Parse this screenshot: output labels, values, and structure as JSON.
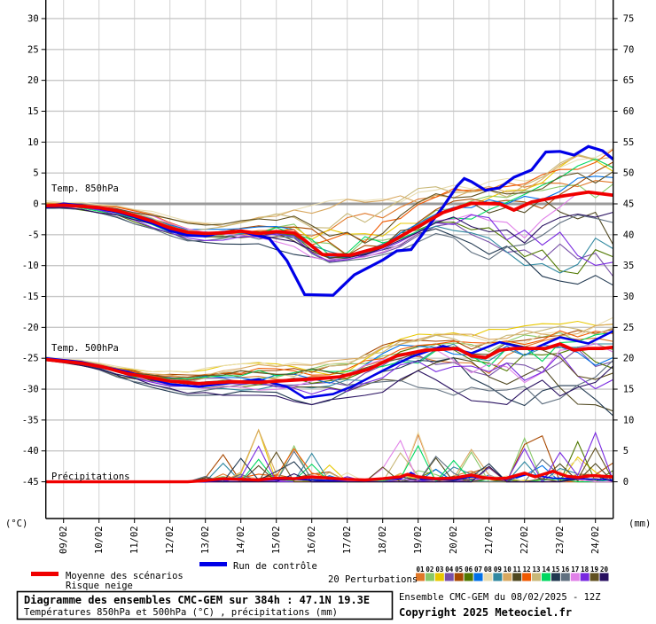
{
  "axes": {
    "left_unit": "(°C)",
    "right_unit": "(mm)",
    "left_ticks": [
      30,
      25,
      20,
      15,
      10,
      5,
      0,
      -5,
      -10,
      -15,
      -20,
      -25,
      -30,
      -35,
      -40,
      -45
    ],
    "right_ticks": [
      75,
      70,
      65,
      60,
      55,
      50,
      45,
      40,
      35,
      30,
      25,
      20,
      15,
      10,
      5,
      0
    ],
    "dates": [
      "09/02",
      "10/02",
      "11/02",
      "12/02",
      "13/02",
      "14/02",
      "15/02",
      "16/02",
      "17/02",
      "18/02",
      "19/02",
      "20/02",
      "21/02",
      "22/02",
      "23/02",
      "24/02"
    ]
  },
  "band_labels": {
    "t850": "Temp. 850hPa",
    "t500": "Temp. 500hPa",
    "precip": "Précipitations"
  },
  "legend": {
    "mean_label": "Moyenne des scénarios",
    "snow_label": "Risque neige",
    "control_label": "Run de contrôle",
    "perturbations_label": "20 Perturbations",
    "mean_color": "#f00000",
    "control_color": "#0000e8",
    "members": [
      {
        "id": "01",
        "color": "#e07828"
      },
      {
        "id": "02",
        "color": "#88c868"
      },
      {
        "id": "03",
        "color": "#e8c800"
      },
      {
        "id": "04",
        "color": "#7850a8"
      },
      {
        "id": "05",
        "color": "#a84800"
      },
      {
        "id": "06",
        "color": "#507800"
      },
      {
        "id": "07",
        "color": "#0070e8"
      },
      {
        "id": "08",
        "color": "#e8dcb0"
      },
      {
        "id": "09",
        "color": "#3088a0"
      },
      {
        "id": "10",
        "color": "#d8a860"
      },
      {
        "id": "11",
        "color": "#504820"
      },
      {
        "id": "12",
        "color": "#f05800"
      },
      {
        "id": "13",
        "color": "#c8b878"
      },
      {
        "id": "14",
        "color": "#00d860"
      },
      {
        "id": "15",
        "color": "#203850"
      },
      {
        "id": "16",
        "color": "#607080"
      },
      {
        "id": "17",
        "color": "#e080e8"
      },
      {
        "id": "18",
        "color": "#7828e0"
      },
      {
        "id": "19",
        "color": "#605020"
      },
      {
        "id": "20",
        "color": "#281060"
      }
    ]
  },
  "title_box": {
    "line1": "Diagramme des ensembles CMC-GEM sur 384h : 47.1N 19.3E",
    "line2": "Températures 850hPa et 500hPa (°C) , précipitations (mm)"
  },
  "info": {
    "run": "Ensemble CMC-GEM du 08/02/2025 - 12Z",
    "copyright": "Copyright 2025 Meteociel.fr"
  },
  "chart_data": {
    "type": "line",
    "title": "Diagramme des ensembles CMC-GEM sur 384h : 47.1N 19.3E",
    "x_unit": "days since 2025-02-08 12Z",
    "x_range": [
      0,
      16
    ],
    "left_axis": {
      "label": "(°C)",
      "min": -45,
      "max": 30,
      "step": 5
    },
    "right_axis": {
      "label": "(mm)",
      "min": 0,
      "max": 75,
      "step": 5
    },
    "grid": true,
    "member_bias": [
      0.3,
      0.1,
      0.7,
      -0.2,
      0.45,
      -0.35,
      0.05,
      0.95,
      -0.15,
      0.75,
      -0.45,
      0.5,
      0.6,
      0.15,
      -1.0,
      -0.6,
      -0.3,
      -0.7,
      0.35,
      -0.5
    ],
    "temp850": {
      "mean": [
        [
          0,
          -0.3
        ],
        [
          0.5,
          -0.2
        ],
        [
          1,
          -0.4
        ],
        [
          1.5,
          -0.6
        ],
        [
          2,
          -1.1
        ],
        [
          2.5,
          -1.9
        ],
        [
          3,
          -2.8
        ],
        [
          3.5,
          -3.9
        ],
        [
          4,
          -4.6
        ],
        [
          4.5,
          -4.8
        ],
        [
          5,
          -4.7
        ],
        [
          5.5,
          -4.4
        ],
        [
          6,
          -4.8
        ],
        [
          6.5,
          -4.5
        ],
        [
          7,
          -4.7
        ],
        [
          7.3,
          -5.9
        ],
        [
          7.8,
          -8.2
        ],
        [
          8.6,
          -8.3
        ],
        [
          9.5,
          -6.9
        ],
        [
          10.3,
          -4.3
        ],
        [
          11.2,
          -1.4
        ],
        [
          12,
          0.1
        ],
        [
          12.8,
          0.0
        ],
        [
          13.2,
          -1.0
        ],
        [
          13.7,
          0.3
        ],
        [
          14.5,
          1.2
        ],
        [
          15.3,
          1.9
        ],
        [
          16,
          1.4
        ]
      ],
      "control": [
        [
          0,
          -0.5
        ],
        [
          0.5,
          0.0
        ],
        [
          1,
          -0.3
        ],
        [
          1.5,
          -0.7
        ],
        [
          2,
          -1.3
        ],
        [
          2.5,
          -2.1
        ],
        [
          3,
          -3.1
        ],
        [
          3.5,
          -4.3
        ],
        [
          4,
          -5.1
        ],
        [
          4.5,
          -5.2
        ],
        [
          5,
          -4.6
        ],
        [
          5.5,
          -4.4
        ],
        [
          6,
          -5.2
        ],
        [
          6.3,
          -5.6
        ],
        [
          6.8,
          -9.2
        ],
        [
          7.3,
          -14.7
        ],
        [
          8.1,
          -14.8
        ],
        [
          8.7,
          -11.5
        ],
        [
          9.5,
          -9.1
        ],
        [
          9.9,
          -7.6
        ],
        [
          10.3,
          -7.4
        ],
        [
          10.7,
          -4.3
        ],
        [
          11.2,
          -0.5
        ],
        [
          11.6,
          2.9
        ],
        [
          11.8,
          4.1
        ],
        [
          12,
          3.6
        ],
        [
          12.4,
          2.2
        ],
        [
          12.8,
          2.6
        ],
        [
          13.2,
          4.3
        ],
        [
          13.7,
          5.5
        ],
        [
          14.1,
          8.4
        ],
        [
          14.5,
          8.5
        ],
        [
          14.9,
          7.9
        ],
        [
          15.3,
          9.3
        ],
        [
          15.7,
          8.6
        ],
        [
          16,
          7.2
        ]
      ],
      "envelope_upper": [
        [
          0,
          0.6
        ],
        [
          1,
          0.3
        ],
        [
          2,
          -0.2
        ],
        [
          3,
          -1.2
        ],
        [
          4,
          -2.8
        ],
        [
          5,
          -3.2
        ],
        [
          6,
          -2.2
        ],
        [
          7,
          -1.0
        ],
        [
          8,
          0.5
        ],
        [
          9,
          1.0
        ],
        [
          10,
          2.0
        ],
        [
          11,
          3.0
        ],
        [
          12,
          3.0
        ],
        [
          13,
          4.2
        ],
        [
          14,
          5.5
        ],
        [
          15,
          8.0
        ],
        [
          16,
          9.0
        ]
      ],
      "envelope_lower": [
        [
          0,
          -1.0
        ],
        [
          1,
          -1.3
        ],
        [
          2,
          -2.2
        ],
        [
          3,
          -4.3
        ],
        [
          4,
          -6.0
        ],
        [
          5,
          -6.5
        ],
        [
          6,
          -6.6
        ],
        [
          7,
          -8.2
        ],
        [
          8,
          -10.0
        ],
        [
          9,
          -9.0
        ],
        [
          10,
          -7.5
        ],
        [
          11,
          -5.2
        ],
        [
          12,
          -8.0
        ],
        [
          13,
          -10.0
        ],
        [
          14,
          -12.0
        ],
        [
          15,
          -13.0
        ],
        [
          16,
          -14.5
        ]
      ]
    },
    "temp500": {
      "mean": [
        [
          0,
          -25.2
        ],
        [
          0.5,
          -25.5
        ],
        [
          1,
          -25.8
        ],
        [
          1.6,
          -26.4
        ],
        [
          2.3,
          -27.5
        ],
        [
          3,
          -28.2
        ],
        [
          3.5,
          -28.7
        ],
        [
          4.3,
          -29.1
        ],
        [
          5.2,
          -28.8
        ],
        [
          6,
          -28.9
        ],
        [
          6.8,
          -28.6
        ],
        [
          7.7,
          -28.3
        ],
        [
          8.3,
          -28.0
        ],
        [
          9.1,
          -26.8
        ],
        [
          9.9,
          -24.6
        ],
        [
          10.7,
          -23.7
        ],
        [
          11.6,
          -23.4
        ],
        [
          12,
          -24.6
        ],
        [
          12.4,
          -24.9
        ],
        [
          12.8,
          -23.7
        ],
        [
          13.2,
          -23.4
        ],
        [
          14.1,
          -23.4
        ],
        [
          14.5,
          -22.7
        ],
        [
          14.9,
          -23.7
        ],
        [
          15.3,
          -23.4
        ],
        [
          15.7,
          -23.4
        ],
        [
          16,
          -23.2
        ]
      ],
      "control": [
        [
          0,
          -25.0
        ],
        [
          1,
          -25.6
        ],
        [
          2.3,
          -27.2
        ],
        [
          3.5,
          -29.2
        ],
        [
          4.3,
          -29.6
        ],
        [
          5.2,
          -29.0
        ],
        [
          6,
          -28.4
        ],
        [
          6.8,
          -29.6
        ],
        [
          7.3,
          -31.4
        ],
        [
          8.1,
          -30.8
        ],
        [
          8.7,
          -29.4
        ],
        [
          9.5,
          -27.0
        ],
        [
          10.3,
          -24.8
        ],
        [
          11.2,
          -23.0
        ],
        [
          12,
          -24.2
        ],
        [
          12.8,
          -22.4
        ],
        [
          13.7,
          -23.6
        ],
        [
          14.5,
          -21.6
        ],
        [
          15.3,
          -22.6
        ],
        [
          16,
          -20.6
        ]
      ],
      "envelope_upper": [
        [
          0,
          -24.7
        ],
        [
          1,
          -25.2
        ],
        [
          2,
          -26.3
        ],
        [
          3,
          -27.2
        ],
        [
          4,
          -27.0
        ],
        [
          5,
          -26.2
        ],
        [
          6,
          -25.6
        ],
        [
          7,
          -25.2
        ],
        [
          8,
          -25.0
        ],
        [
          9,
          -23.2
        ],
        [
          10,
          -21.6
        ],
        [
          11,
          -20.6
        ],
        [
          12,
          -20.6
        ],
        [
          13,
          -20.0
        ],
        [
          14,
          -19.4
        ],
        [
          15,
          -19.0
        ],
        [
          16,
          -18.4
        ]
      ],
      "envelope_lower": [
        [
          0,
          -25.6
        ],
        [
          1,
          -26.4
        ],
        [
          2,
          -28.4
        ],
        [
          3,
          -30.0
        ],
        [
          4,
          -31.0
        ],
        [
          5,
          -31.0
        ],
        [
          6,
          -31.0
        ],
        [
          7,
          -32.0
        ],
        [
          8,
          -33.0
        ],
        [
          9,
          -31.0
        ],
        [
          10,
          -30.0
        ],
        [
          11,
          -30.0
        ],
        [
          12,
          -32.0
        ],
        [
          13,
          -34.0
        ],
        [
          14,
          -35.0
        ],
        [
          15,
          -36.2
        ],
        [
          16,
          -37.0
        ]
      ]
    },
    "precip": {
      "mean": [
        [
          0,
          0
        ],
        [
          4,
          0
        ],
        [
          4.5,
          0.2
        ],
        [
          5,
          0.5
        ],
        [
          5.5,
          0.4
        ],
        [
          6,
          0.3
        ],
        [
          6.5,
          0.6
        ],
        [
          7,
          0.5
        ],
        [
          7.5,
          0.8
        ],
        [
          8,
          0.6
        ],
        [
          8.5,
          0.4
        ],
        [
          9,
          0.3
        ],
        [
          9.5,
          0.5
        ],
        [
          10,
          0.8
        ],
        [
          10.2,
          1.2
        ],
        [
          10.5,
          0.8
        ],
        [
          11,
          0.5
        ],
        [
          11.5,
          0.6
        ],
        [
          12,
          1.1
        ],
        [
          12.3,
          0.7
        ],
        [
          12.7,
          0.5
        ],
        [
          13,
          0.6
        ],
        [
          13.5,
          1.4
        ],
        [
          13.8,
          0.8
        ],
        [
          14.3,
          1.7
        ],
        [
          14.7,
          0.9
        ],
        [
          15,
          0.7
        ],
        [
          15.4,
          1.0
        ],
        [
          16,
          0.8
        ]
      ],
      "control": [
        [
          0,
          0
        ],
        [
          4.5,
          0
        ],
        [
          5,
          0.3
        ],
        [
          6,
          0.2
        ],
        [
          7,
          0.4
        ],
        [
          8,
          0.2
        ],
        [
          9,
          0.3
        ],
        [
          10,
          0.5
        ],
        [
          10.3,
          1.5
        ],
        [
          10.6,
          0.4
        ],
        [
          11.5,
          0.3
        ],
        [
          12,
          0.8
        ],
        [
          13,
          0.4
        ],
        [
          13.6,
          1.2
        ],
        [
          14.3,
          0.6
        ],
        [
          15,
          0.5
        ],
        [
          16,
          0.3
        ]
      ],
      "member_max": [
        [
          0,
          0
        ],
        [
          4,
          0
        ],
        [
          4.5,
          1
        ],
        [
          5,
          9.5
        ],
        [
          5.5,
          7
        ],
        [
          6,
          8.5
        ],
        [
          6.5,
          6
        ],
        [
          7,
          6
        ],
        [
          7.5,
          5
        ],
        [
          8,
          4.5
        ],
        [
          8.5,
          3
        ],
        [
          9,
          3
        ],
        [
          9.5,
          4
        ],
        [
          10,
          9
        ],
        [
          10.2,
          11.5
        ],
        [
          10.5,
          8
        ],
        [
          11,
          5
        ],
        [
          11.5,
          4
        ],
        [
          12,
          8
        ],
        [
          12.5,
          6
        ],
        [
          13,
          10
        ],
        [
          13.5,
          8
        ],
        [
          14,
          10.5
        ],
        [
          14.5,
          9
        ],
        [
          15,
          9
        ],
        [
          15.5,
          8.5
        ],
        [
          16,
          8.5
        ]
      ]
    }
  }
}
